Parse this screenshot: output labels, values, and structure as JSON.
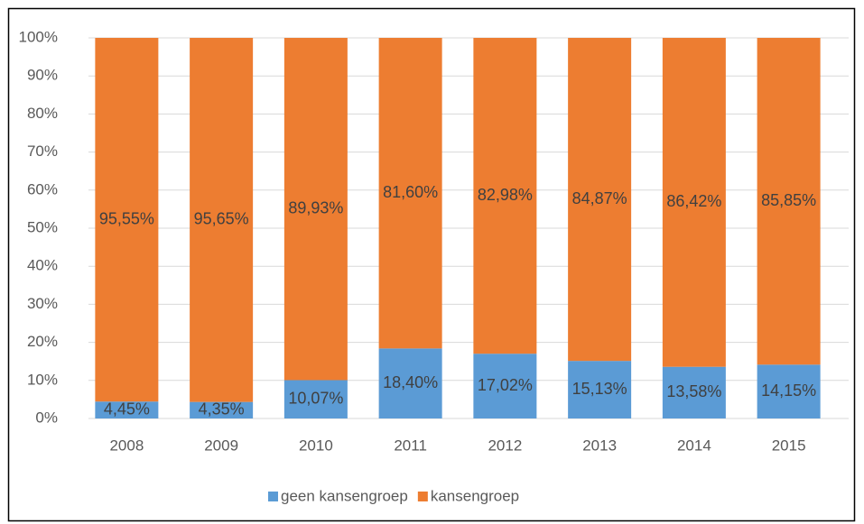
{
  "chart_data": {
    "type": "bar",
    "stacked": true,
    "categories": [
      "2008",
      "2009",
      "2010",
      "2011",
      "2012",
      "2013",
      "2014",
      "2015"
    ],
    "series": [
      {
        "name": "geen kansengroep",
        "color": "#5b9bd5",
        "values": [
          4.45,
          4.35,
          10.07,
          18.4,
          17.02,
          15.13,
          13.58,
          14.15
        ],
        "value_labels": [
          "4,45%",
          "4,35%",
          "10,07%",
          "18,40%",
          "17,02%",
          "15,13%",
          "13,58%",
          "14,15%"
        ]
      },
      {
        "name": "kansengroep",
        "color": "#ed7d31",
        "values": [
          95.55,
          95.65,
          89.93,
          81.6,
          82.98,
          84.87,
          86.42,
          85.85
        ],
        "value_labels": [
          "95,55%",
          "95,65%",
          "89,93%",
          "81,60%",
          "82,98%",
          "84,87%",
          "86,42%",
          "85,85%"
        ]
      }
    ],
    "ylim": [
      0,
      100
    ],
    "yticks": [
      {
        "value": 0,
        "label": "0%"
      },
      {
        "value": 10,
        "label": "10%"
      },
      {
        "value": 20,
        "label": "20%"
      },
      {
        "value": 30,
        "label": "30%"
      },
      {
        "value": 40,
        "label": "40%"
      },
      {
        "value": 50,
        "label": "50%"
      },
      {
        "value": 60,
        "label": "60%"
      },
      {
        "value": 70,
        "label": "70%"
      },
      {
        "value": 80,
        "label": "80%"
      },
      {
        "value": 90,
        "label": "90%"
      },
      {
        "value": 100,
        "label": "100%"
      }
    ],
    "grid": true,
    "legend": "bottom"
  }
}
